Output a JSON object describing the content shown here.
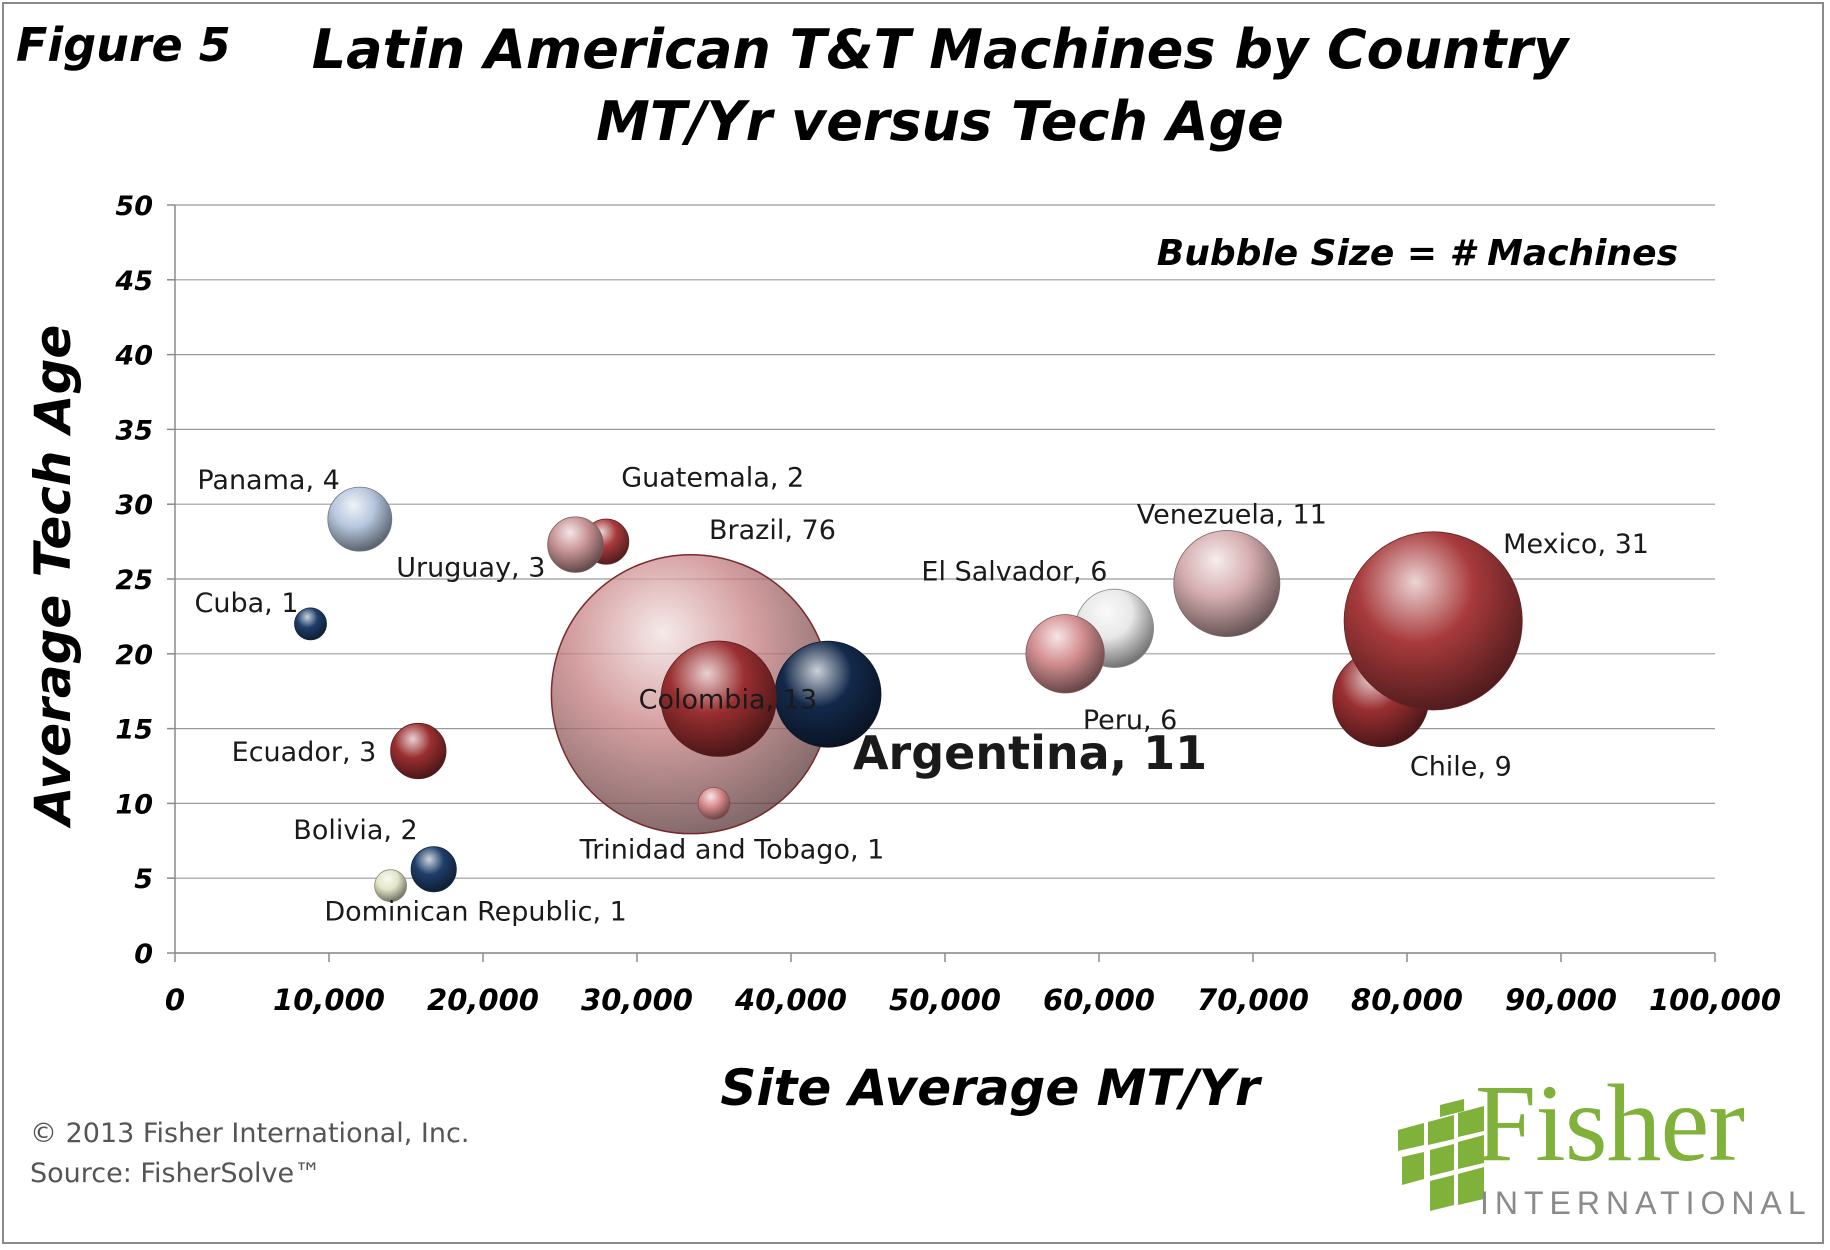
{
  "figure_label": "Figure 5",
  "title_line1": "Latin American T&T Machines  by Country",
  "title_line2": "MT/Yr  versus Tech Age",
  "footer_copyright": "© 2013 Fisher International, Inc.",
  "footer_source": "Source: FisherSolve™",
  "logo_word": "Fisher",
  "logo_sub": "INTERNATIONAL",
  "chart_data": {
    "type": "scatter",
    "subtype": "bubble",
    "xlabel": "Site Average MT/Yr",
    "ylabel": "Average Tech Age",
    "annotation": "Bubble Size = # Machines",
    "xlim": [
      0,
      100000
    ],
    "ylim": [
      0,
      50
    ],
    "xticks": [
      0,
      10000,
      20000,
      30000,
      40000,
      50000,
      60000,
      70000,
      80000,
      90000,
      100000
    ],
    "xtick_labels": [
      "0",
      "10,000",
      "20,000",
      "30,000",
      "40,000",
      "50,000",
      "60,000",
      "70,000",
      "80,000",
      "90,000",
      "100,000"
    ],
    "yticks": [
      0,
      5,
      10,
      15,
      20,
      25,
      30,
      35,
      40,
      45,
      50
    ],
    "grid": true,
    "points": [
      {
        "label": "Brazil, 76",
        "x": 33500,
        "y": 17.3,
        "size": 76,
        "color": "#c98486",
        "translucent": true
      },
      {
        "label": "Panama, 4",
        "x": 12000,
        "y": 29,
        "size": 4,
        "color": "#b7c7de"
      },
      {
        "label": "Guatemala, 2",
        "x": 28000,
        "y": 27.5,
        "size": 2,
        "color": "#a83a3c"
      },
      {
        "label": "Uruguay, 3",
        "x": 26000,
        "y": 27.3,
        "size": 3,
        "color": "#c99496"
      },
      {
        "label": "Cuba, 1",
        "x": 8800,
        "y": 22,
        "size": 1,
        "color": "#1f3e69"
      },
      {
        "label": "Ecuador, 3",
        "x": 15800,
        "y": 13.5,
        "size": 3,
        "color": "#9a2f31"
      },
      {
        "label": "Bolivia, 2",
        "x": 16800,
        "y": 5.6,
        "size": 2,
        "color": "#1f3e69"
      },
      {
        "label": "Dominican Republic, 1",
        "x": 14000,
        "y": 4.5,
        "size": 1,
        "color": "#e3e6c8"
      },
      {
        "label": "Trinidad and Tobago, 1",
        "x": 35000,
        "y": 10,
        "size": 1,
        "color": "#d88a8c"
      },
      {
        "label": "Argentina, 11",
        "x": 42400,
        "y": 17.3,
        "size": 11,
        "color": "#13294a",
        "bold": true
      },
      {
        "label": "Colombia, 13",
        "x": 35300,
        "y": 17,
        "size": 13,
        "color": "#9a2f31"
      },
      {
        "label": "El Salvador, 6",
        "x": 61000,
        "y": 21.7,
        "size": 6,
        "color": "#e8e8e8"
      },
      {
        "label": "Peru, 6",
        "x": 57800,
        "y": 20,
        "size": 6,
        "color": "#d48f91"
      },
      {
        "label": "Venezuela, 11",
        "x": 68300,
        "y": 24.7,
        "size": 11,
        "color": "#d6aeb0"
      },
      {
        "label": "Chile, 9",
        "x": 78300,
        "y": 17,
        "size": 9,
        "color": "#9a2f31"
      },
      {
        "label": "Mexico, 31",
        "x": 81700,
        "y": 22.2,
        "size": 31,
        "color": "#a83a3c"
      }
    ]
  }
}
